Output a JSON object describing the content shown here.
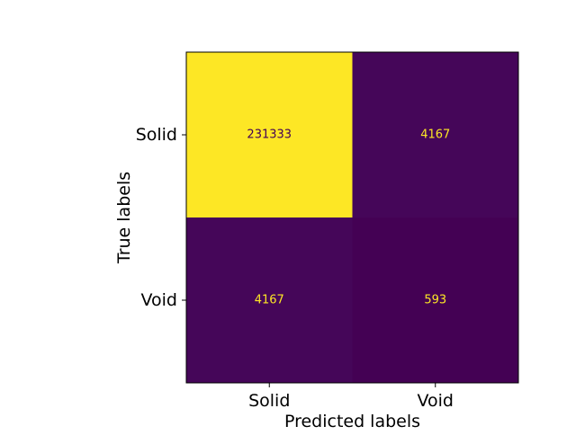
{
  "chart_data": {
    "type": "heatmap",
    "title": "",
    "xlabel": "Predicted labels",
    "ylabel": "True labels",
    "x_categories": [
      "Solid",
      "Void"
    ],
    "y_categories": [
      "Solid",
      "Void"
    ],
    "values": [
      [
        231333,
        4167
      ],
      [
        4167,
        593
      ]
    ],
    "cell_labels": [
      [
        "231333",
        "4167"
      ],
      [
        "4167",
        "593"
      ]
    ],
    "colormap": "viridis",
    "colors": {
      "high": "#fde725",
      "mid_low": "#450559",
      "low": "#440154",
      "label_on_dark": "#fde725",
      "label_on_light": "#440154"
    },
    "grid": false,
    "colorbar": false
  }
}
